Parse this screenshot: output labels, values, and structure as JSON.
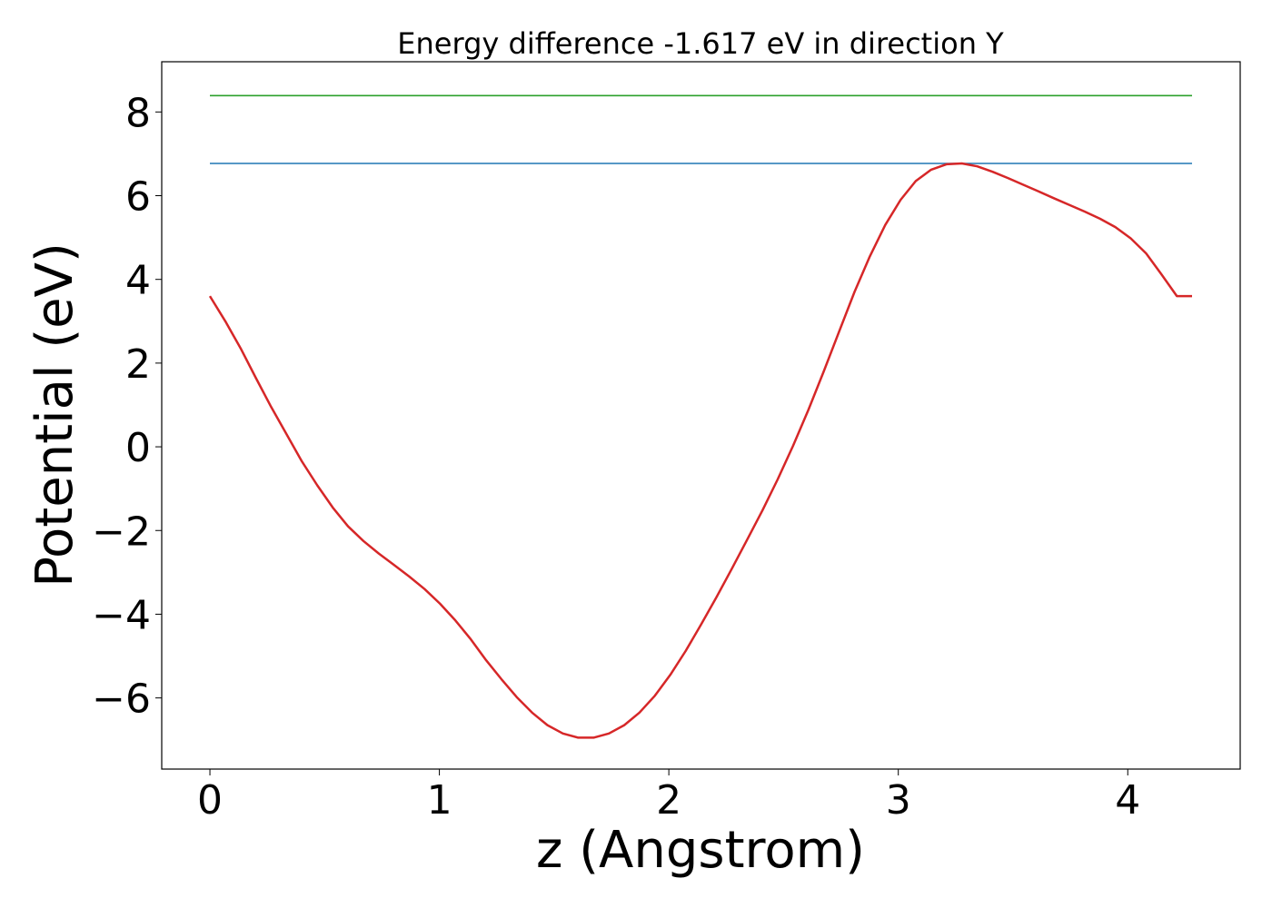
{
  "chart_data": {
    "type": "line",
    "title": "Energy difference -1.617 eV in direction Y",
    "xlabel": "z (Angstrom)",
    "ylabel": "Potential (eV)",
    "xlim": [
      -0.21,
      4.49
    ],
    "ylim": [
      -7.7,
      9.2
    ],
    "xticks": [
      0,
      1,
      2,
      3,
      4
    ],
    "xtick_labels": [
      "0",
      "1",
      "2",
      "3",
      "4"
    ],
    "yticks": [
      -6,
      -4,
      -2,
      0,
      2,
      4,
      6,
      8
    ],
    "ytick_labels": [
      "−6",
      "−4",
      "−2",
      "0",
      "2",
      "4",
      "6",
      "8"
    ],
    "grid": false,
    "series": [
      {
        "color": "#2ca02c",
        "style": "horizontal",
        "x": [
          0,
          4.28
        ],
        "values": [
          8.39,
          8.39
        ]
      },
      {
        "color": "#1f77b4",
        "style": "horizontal",
        "x": [
          0,
          4.28
        ],
        "values": [
          6.77,
          6.77
        ]
      },
      {
        "color": "#d62728",
        "style": "curve",
        "x": [
          0,
          0.067,
          0.134,
          0.2,
          0.267,
          0.334,
          0.401,
          0.468,
          0.535,
          0.602,
          0.669,
          0.736,
          0.802,
          0.869,
          0.936,
          1.003,
          1.07,
          1.137,
          1.204,
          1.27,
          1.337,
          1.404,
          1.471,
          1.538,
          1.605,
          1.672,
          1.739,
          1.806,
          1.872,
          1.939,
          2.006,
          2.073,
          2.14,
          2.207,
          2.274,
          2.341,
          2.408,
          2.474,
          2.541,
          2.608,
          2.675,
          2.742,
          2.809,
          2.876,
          2.943,
          3.01,
          3.076,
          3.143,
          3.21,
          3.277,
          3.344,
          3.411,
          3.478,
          3.545,
          3.612,
          3.678,
          3.745,
          3.812,
          3.879,
          3.946,
          4.013,
          4.08,
          4.147,
          4.214,
          4.28
        ],
        "values": [
          3.6,
          3.0,
          2.35,
          1.65,
          0.95,
          0.3,
          -0.35,
          -0.92,
          -1.45,
          -1.9,
          -2.25,
          -2.55,
          -2.82,
          -3.1,
          -3.4,
          -3.75,
          -4.15,
          -4.6,
          -5.1,
          -5.55,
          -5.98,
          -6.35,
          -6.65,
          -6.85,
          -6.95,
          -6.95,
          -6.85,
          -6.65,
          -6.35,
          -5.95,
          -5.45,
          -4.88,
          -4.25,
          -3.6,
          -2.92,
          -2.22,
          -1.52,
          -0.78,
          0.02,
          0.88,
          1.8,
          2.75,
          3.7,
          4.55,
          5.3,
          5.9,
          6.35,
          6.62,
          6.75,
          6.77,
          6.7,
          6.57,
          6.42,
          6.26,
          6.1,
          5.94,
          5.78,
          5.62,
          5.45,
          5.25,
          4.98,
          4.62,
          4.12,
          3.6,
          3.6
        ]
      }
    ]
  }
}
